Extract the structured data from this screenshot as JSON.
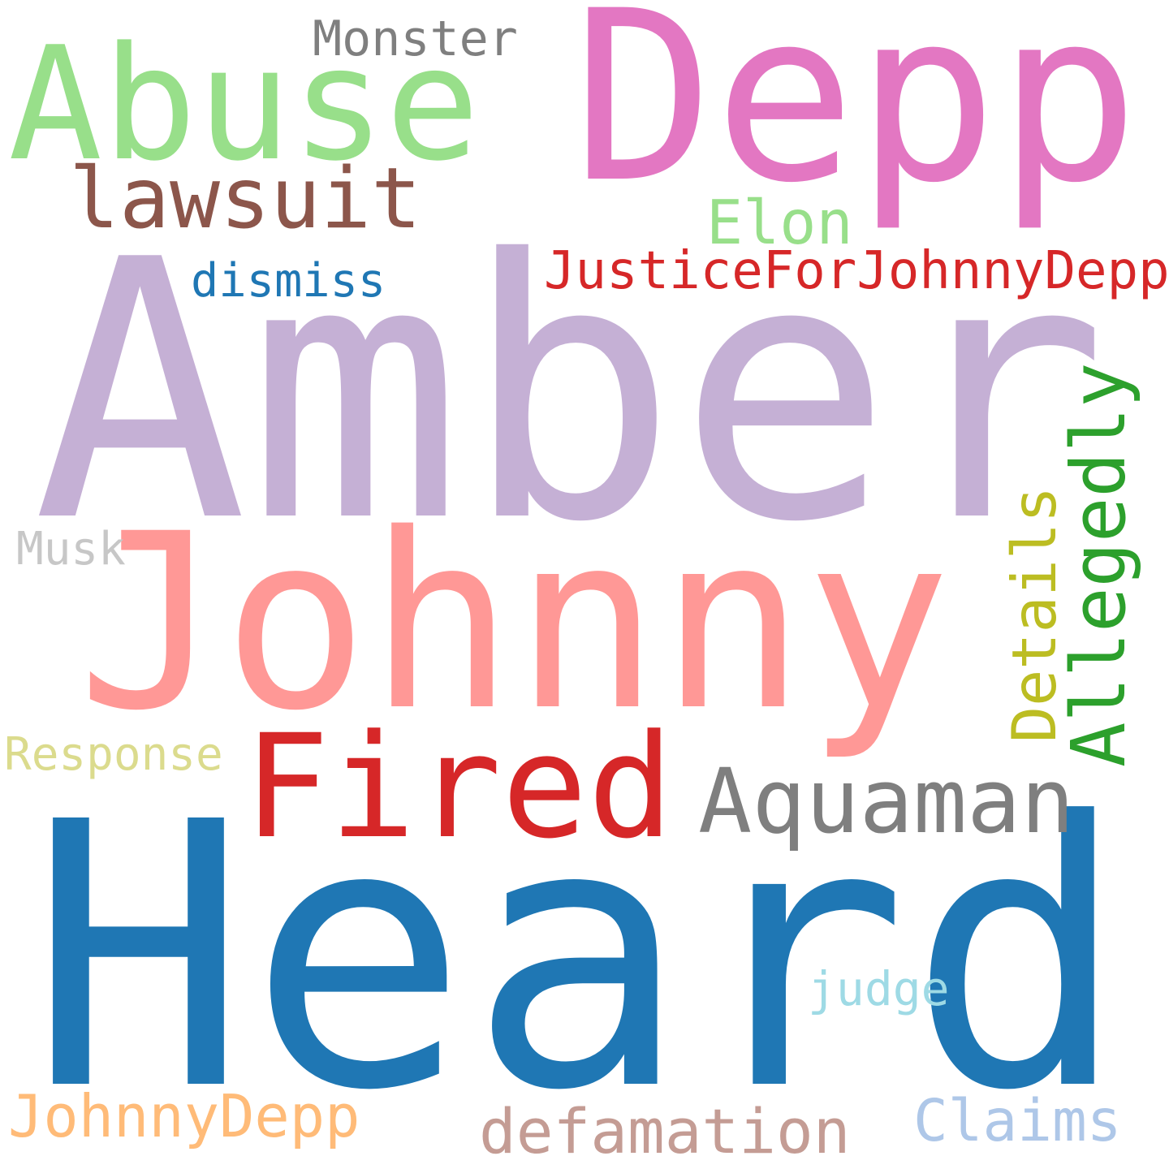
{
  "words": [
    {
      "text": "Amber",
      "color": "#c5b0d5"
    },
    {
      "text": "Heard",
      "color": "#1f77b4"
    },
    {
      "text": "Depp",
      "color": "#e377c2"
    },
    {
      "text": "Johnny",
      "color": "#ff9896"
    },
    {
      "text": "Abuse",
      "color": "#98df8a"
    },
    {
      "text": "Fired",
      "color": "#d62728"
    },
    {
      "text": "Aquaman",
      "color": "#7f7f7f"
    },
    {
      "text": "Allegedly",
      "color": "#2ca02c"
    },
    {
      "text": "lawsuit",
      "color": "#8c564b"
    },
    {
      "text": "Details",
      "color": "#bcbd22"
    },
    {
      "text": "defamation",
      "color": "#c49c94"
    },
    {
      "text": "JohnnyDepp",
      "color": "#ffbb78"
    },
    {
      "text": "Elon",
      "color": "#98df8a"
    },
    {
      "text": "Claims",
      "color": "#aec7e8"
    },
    {
      "text": "JusticeForJohnnyDepp",
      "color": "#d62728"
    },
    {
      "text": "Monster",
      "color": "#7f7f7f"
    },
    {
      "text": "judge",
      "color": "#9edae5"
    },
    {
      "text": "dismiss",
      "color": "#1f77b4"
    },
    {
      "text": "Musk",
      "color": "#c7c7c7"
    },
    {
      "text": "Response",
      "color": "#dbdb8d"
    }
  ]
}
